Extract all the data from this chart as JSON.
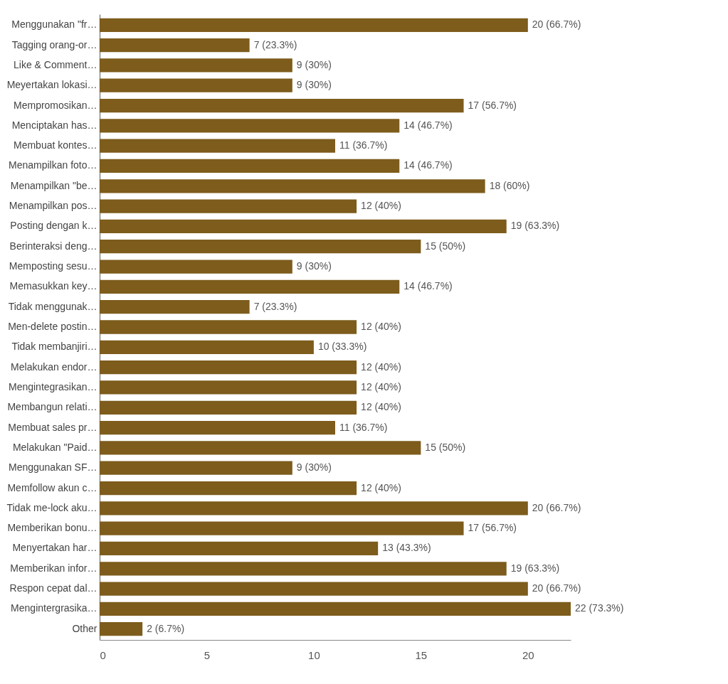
{
  "chart_data": {
    "type": "bar",
    "orientation": "horizontal",
    "categories": [
      "Menggunakan \"fr…",
      "Tagging orang-or…",
      "Like & Comment…",
      "Meyertakan lokasi…",
      "Mempromosikan…",
      "Menciptakan has…",
      "Membuat kontes…",
      "Menampilkan foto…",
      "Menampilkan \"be…",
      "Menampilkan pos…",
      "Posting dengan k…",
      "Berinteraksi deng…",
      "Memposting sesu…",
      "Memasukkan key…",
      "Tidak menggunak…",
      "Men-delete postin…",
      "Tidak membanjiri…",
      "Melakukan endor…",
      "Mengintegrasikan…",
      "Membangun relati…",
      "Membuat sales pr…",
      "Melakukan \"Paid…",
      "Menggunakan SF…",
      "Memfollow akun c…",
      "Tidak me-lock aku…",
      "Memberikan bonu…",
      "Menyertakan har…",
      "Memberikan infor…",
      "Respon cepat dal…",
      "Mengintergrasika…",
      "Other"
    ],
    "values": [
      20,
      7,
      9,
      9,
      17,
      14,
      11,
      14,
      18,
      12,
      19,
      15,
      9,
      14,
      7,
      12,
      10,
      12,
      12,
      12,
      11,
      15,
      9,
      12,
      20,
      17,
      13,
      19,
      20,
      22,
      2
    ],
    "value_labels": [
      "20 (66.7%)",
      "7 (23.3%)",
      "9 (30%)",
      "9 (30%)",
      "17 (56.7%)",
      "14 (46.7%)",
      "11 (36.7%)",
      "14 (46.7%)",
      "18 (60%)",
      "12 (40%)",
      "19 (63.3%)",
      "15 (50%)",
      "9 (30%)",
      "14 (46.7%)",
      "7 (23.3%)",
      "12 (40%)",
      "10 (33.3%)",
      "12 (40%)",
      "12 (40%)",
      "12 (40%)",
      "11 (36.7%)",
      "15 (50%)",
      "9 (30%)",
      "12 (40%)",
      "20 (66.7%)",
      "17 (56.7%)",
      "13 (43.3%)",
      "19 (63.3%)",
      "20 (66.7%)",
      "22 (73.3%)",
      "2 (6.7%)"
    ],
    "color": "#7d5c1c",
    "xlim": [
      0,
      22
    ],
    "xticks": [
      0,
      5,
      10,
      15,
      20
    ]
  }
}
